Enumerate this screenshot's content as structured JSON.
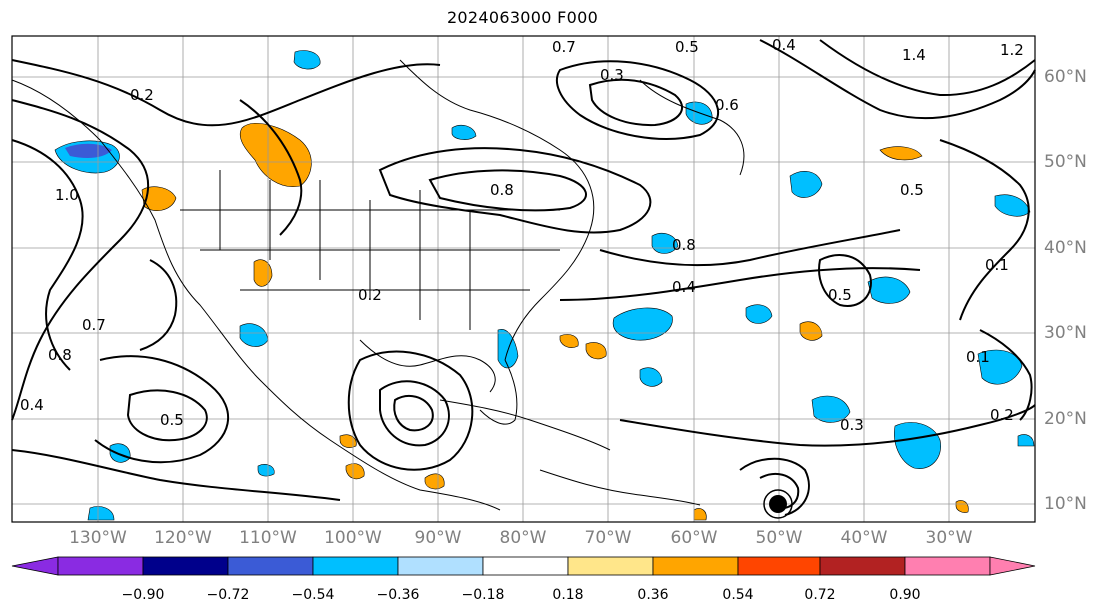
{
  "title": "2024063000 F000",
  "lon_labels": [
    "130°W",
    "120°W",
    "110°W",
    "100°W",
    "90°W",
    "80°W",
    "70°W",
    "60°W",
    "50°W",
    "40°W",
    "30°W"
  ],
  "lat_labels": [
    "60°N",
    "50°N",
    "40°N",
    "30°N",
    "20°N",
    "10°N"
  ],
  "colorbar": {
    "ticks": [
      "−0.90",
      "−0.72",
      "−0.54",
      "−0.36",
      "−0.18",
      "0.18",
      "0.36",
      "0.54",
      "0.72",
      "0.90"
    ],
    "colors": [
      "#8a2be2",
      "#00008b",
      "#3b5bd6",
      "#00bfff",
      "#b0e0ff",
      "#ffffff",
      "#ffe68a",
      "#ffa500",
      "#ff4500",
      "#b22222",
      "#ff7fb0"
    ]
  },
  "contour_labels": [
    "0.7",
    "0.5",
    "0.4",
    "1.4",
    "1.2",
    "0.3",
    "0.6",
    "0.2",
    "0.8",
    "1.0",
    "0.1"
  ]
}
